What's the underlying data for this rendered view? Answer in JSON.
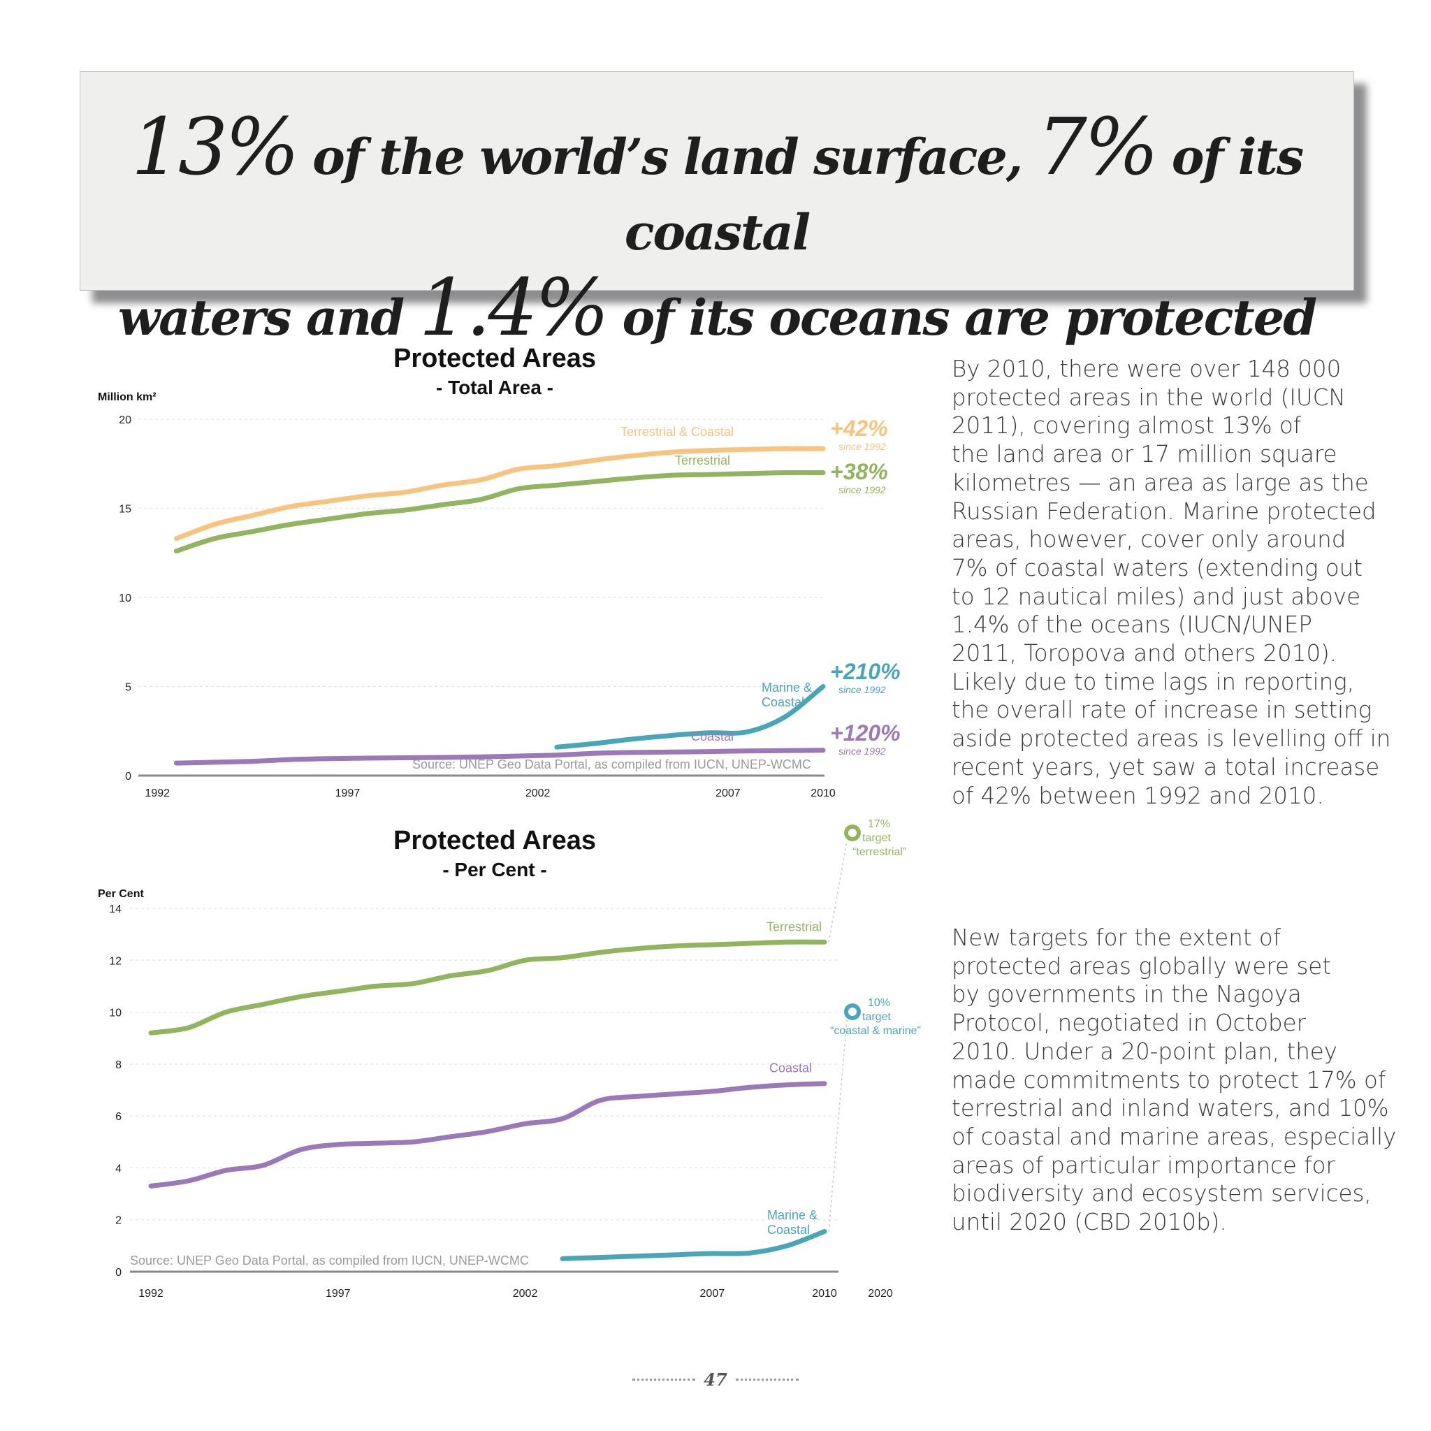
{
  "headline": {
    "pct_land": "13%",
    "text_1": "of the world’s land surface,",
    "pct_coastal": "7%",
    "text_2": "of its coastal",
    "text_3": "waters and",
    "pct_oceans": "1.4%",
    "text_4": "of its oceans are protected"
  },
  "paragraph1": [
    "By 2010, there were over 148 000",
    "protected areas in the world (IUCN",
    "2011), covering almost 13% of",
    "the land area or 17 million square",
    "kilometres — an area as large as the",
    "Russian Federation. Marine protected",
    "areas, however, cover only around",
    "7% of coastal waters (extending out",
    "to 12 nautical miles) and just above",
    "1.4% of the oceans (IUCN/UNEP",
    "2011, Toropova and others 2010).",
    "Likely due to time lags in reporting,",
    "the overall rate of increase in setting",
    "aside protected areas is levelling off in",
    "recent years, yet saw a total increase",
    "of 42% between 1992 and 2010."
  ],
  "paragraph2": [
    "New targets for the extent of",
    "protected areas globally were set",
    "by governments in the Nagoya",
    "Protocol, negotiated in October",
    "2010. Under a 20-point plan, they",
    "made commitments to protect 17% of",
    "terrestrial and inland waters, and 10%",
    "of coastal and marine areas, especially",
    "areas of particular importance for",
    "biodiversity and ecosystem services,",
    "until 2020 (CBD 2010b)."
  ],
  "page_number": "47",
  "chart_data": [
    {
      "type": "line",
      "title": "Protected Areas",
      "subtitle": "- Total Area -",
      "ylabel": "Million km²",
      "xlim": [
        1992,
        2010
      ],
      "ylim": [
        0,
        20
      ],
      "yticks": [
        0,
        5,
        10,
        15,
        20
      ],
      "xticks": [
        "1992",
        "1997",
        "2002",
        "2007",
        "2010"
      ],
      "grid": true,
      "source": "Source: UNEP Geo Data Portal, as compiled from IUCN, UNEP-WCMC",
      "series": [
        {
          "name": "Terrestrial & Coastal",
          "color": "#f7c47f",
          "x": [
            1993,
            1994,
            1995,
            1996,
            1997,
            1998,
            1999,
            2000,
            2001,
            2002,
            2003,
            2004,
            2005,
            2006,
            2007,
            2008,
            2009,
            2010
          ],
          "y": [
            13.3,
            14.1,
            14.6,
            15.1,
            15.4,
            15.7,
            15.9,
            16.3,
            16.6,
            17.2,
            17.4,
            17.7,
            17.95,
            18.15,
            18.25,
            18.3,
            18.35,
            18.35
          ],
          "change": "+42%",
          "change_note": "since 1992"
        },
        {
          "name": "Terrestrial",
          "color": "#93b45f",
          "x": [
            1993,
            1994,
            1995,
            1996,
            1997,
            1998,
            1999,
            2000,
            2001,
            2002,
            2003,
            2004,
            2005,
            2006,
            2007,
            2008,
            2009,
            2010
          ],
          "y": [
            12.6,
            13.3,
            13.7,
            14.1,
            14.4,
            14.7,
            14.9,
            15.2,
            15.5,
            16.1,
            16.3,
            16.5,
            16.7,
            16.85,
            16.9,
            16.95,
            17.0,
            17.0
          ],
          "change": "+38%",
          "change_note": "since 1992"
        },
        {
          "name": "Marine & Coastal",
          "color": "#4aa5b8",
          "x": [
            2003,
            2004,
            2005,
            2006,
            2007,
            2008,
            2009,
            2010
          ],
          "y": [
            1.6,
            1.8,
            2.05,
            2.25,
            2.4,
            2.45,
            3.3,
            5.0
          ],
          "change": "+210%",
          "change_note": "since 1992"
        },
        {
          "name": "Coastal",
          "color": "#9b78b8",
          "x": [
            1993,
            1994,
            1995,
            1996,
            1997,
            1998,
            1999,
            2000,
            2001,
            2002,
            2003,
            2004,
            2005,
            2006,
            2007,
            2008,
            2009,
            2010
          ],
          "y": [
            0.7,
            0.75,
            0.8,
            0.9,
            0.95,
            0.98,
            1.0,
            1.02,
            1.05,
            1.1,
            1.15,
            1.25,
            1.3,
            1.32,
            1.35,
            1.38,
            1.4,
            1.42
          ],
          "change": "+120%",
          "change_note": "since 1992"
        }
      ]
    },
    {
      "type": "line",
      "title": "Protected Areas",
      "subtitle": "- Per Cent -",
      "ylabel": "Per Cent",
      "xlim": [
        1992,
        2020
      ],
      "ylim": [
        0,
        14
      ],
      "yticks": [
        0,
        2,
        4,
        6,
        8,
        10,
        12,
        14
      ],
      "xticks": [
        "1992",
        "1997",
        "2002",
        "2007",
        "2010",
        "2020"
      ],
      "grid": true,
      "source": "Source: UNEP Geo Data Portal, as compiled from IUCN, UNEP-WCMC",
      "series": [
        {
          "name": "Terrestrial",
          "color": "#93b45f",
          "x": [
            1992,
            1993,
            1994,
            1995,
            1996,
            1997,
            1998,
            1999,
            2000,
            2001,
            2002,
            2003,
            2004,
            2005,
            2006,
            2007,
            2008,
            2009,
            2010
          ],
          "y": [
            9.2,
            9.4,
            10.0,
            10.3,
            10.6,
            10.8,
            11.0,
            11.1,
            11.4,
            11.6,
            12.0,
            12.1,
            12.3,
            12.45,
            12.55,
            12.6,
            12.65,
            12.7,
            12.7
          ]
        },
        {
          "name": "Coastal",
          "color": "#9b78b8",
          "x": [
            1992,
            1993,
            1994,
            1995,
            1996,
            1997,
            1998,
            1999,
            2000,
            2001,
            2002,
            2003,
            2004,
            2005,
            2006,
            2007,
            2008,
            2009,
            2010
          ],
          "y": [
            3.3,
            3.5,
            3.9,
            4.1,
            4.7,
            4.9,
            4.95,
            5.0,
            5.2,
            5.4,
            5.7,
            5.9,
            6.6,
            6.75,
            6.85,
            6.95,
            7.1,
            7.2,
            7.25
          ]
        },
        {
          "name": "Marine & Coastal",
          "color": "#4aa5b8",
          "x": [
            2003,
            2004,
            2005,
            2006,
            2007,
            2008,
            2009,
            2010
          ],
          "y": [
            0.5,
            0.55,
            0.6,
            0.65,
            0.7,
            0.72,
            1.0,
            1.55
          ]
        }
      ],
      "targets": [
        {
          "value": 17,
          "year": 2020,
          "label_1": "17%",
          "label_2": "target",
          "label_3": "“terrestrial”",
          "color": "#93b45f"
        },
        {
          "value": 10,
          "year": 2020,
          "label_1": "10%",
          "label_2": "target",
          "label_3": "“coastal & marine”",
          "color": "#4aa5b8"
        }
      ]
    }
  ]
}
